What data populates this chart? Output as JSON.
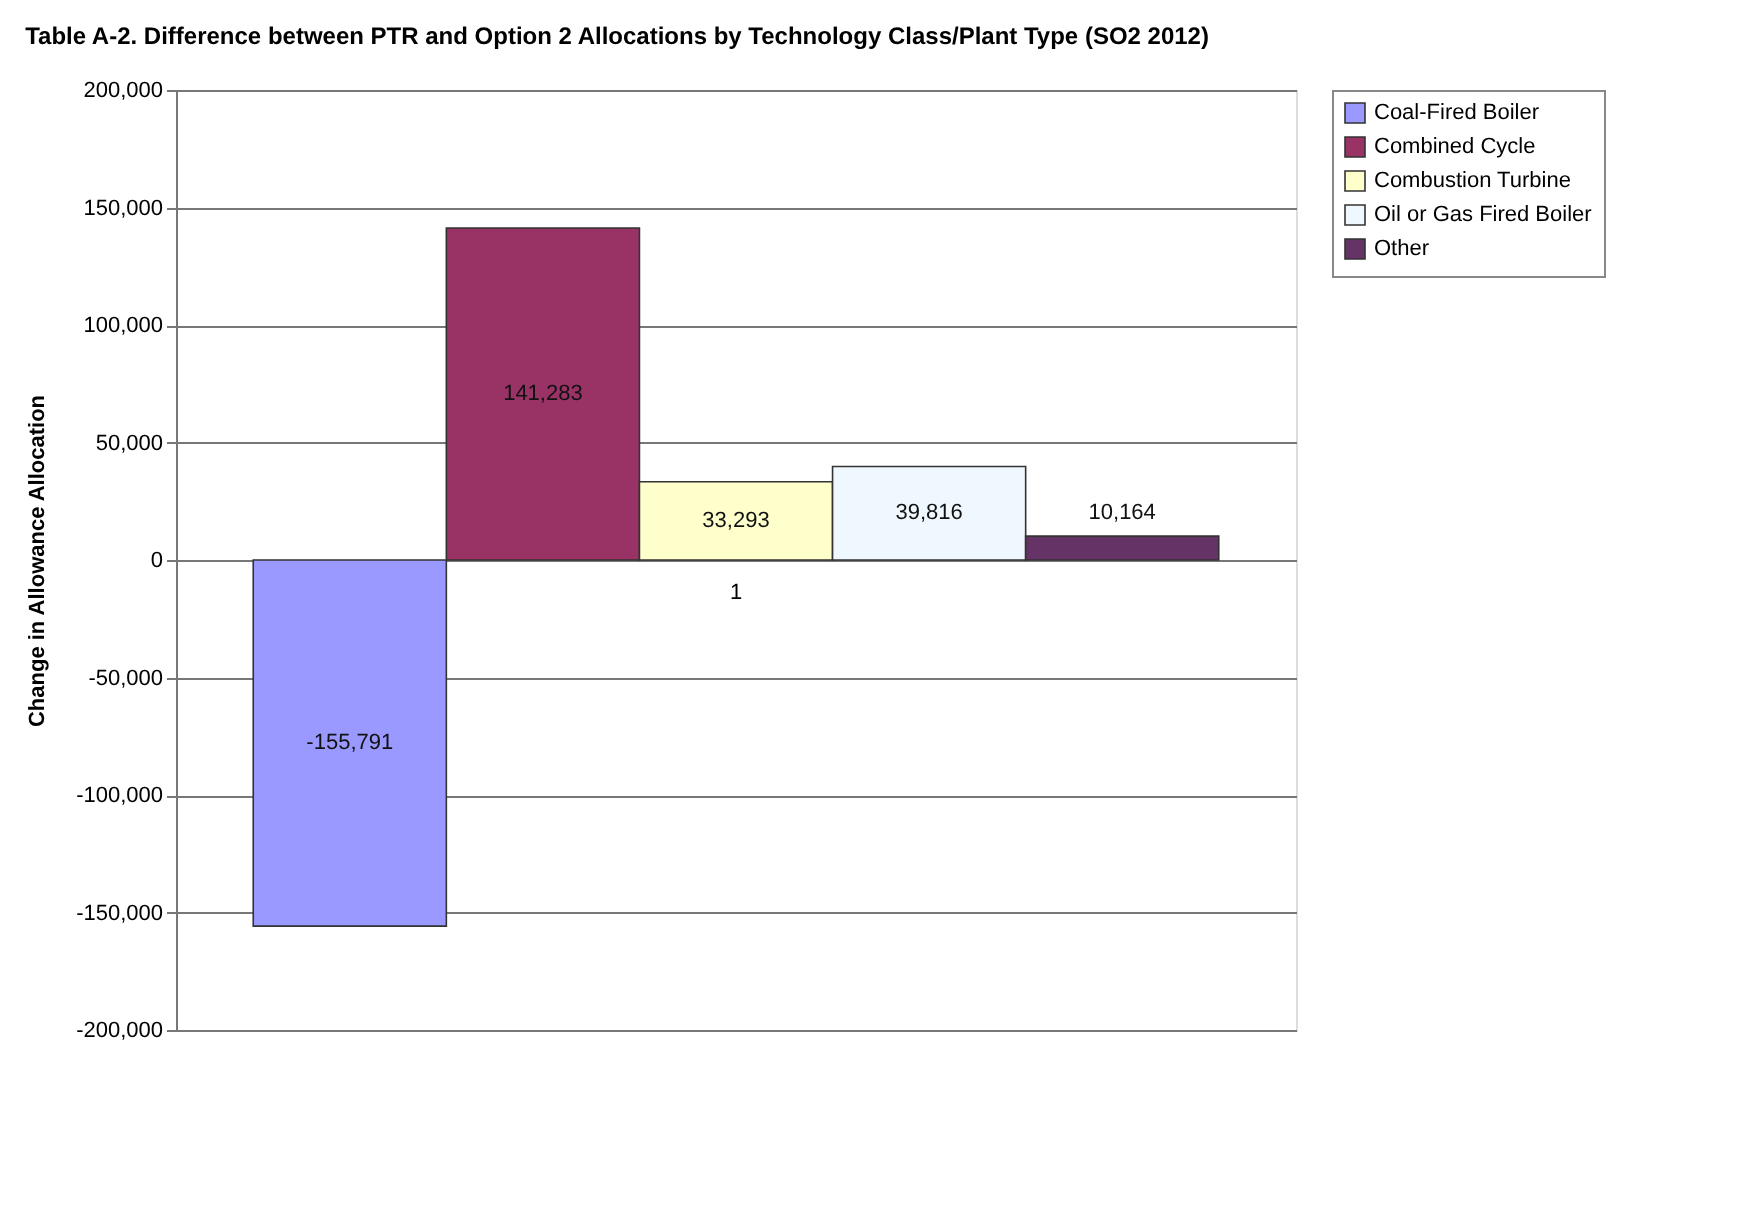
{
  "chart_data": {
    "type": "bar",
    "title": "Table A-2.  Difference between PTR and Option 2 Allocations by Technology Class/Plant Type (SO2 2012)",
    "ylabel": "Change in Allowance Allocation",
    "categories": [
      "1"
    ],
    "series": [
      {
        "name": "Coal-Fired Boiler",
        "color": "#9999ff",
        "values": [
          -155791
        ],
        "value_labels": [
          "-155,791"
        ]
      },
      {
        "name": "Combined Cycle",
        "color": "#993366",
        "values": [
          141283
        ],
        "value_labels": [
          "141,283"
        ]
      },
      {
        "name": "Combustion Turbine",
        "color": "#ffffcc",
        "values": [
          33293
        ],
        "value_labels": [
          "33,293"
        ]
      },
      {
        "name": "Oil or Gas Fired Boiler",
        "color": "#f0f8ff",
        "values": [
          39816
        ],
        "value_labels": [
          "39,816"
        ]
      },
      {
        "name": "Other",
        "color": "#663366",
        "values": [
          10164
        ],
        "value_labels": [
          "10,164"
        ]
      }
    ],
    "ylim": [
      -200000,
      200000
    ],
    "yticks": [
      {
        "value": -200000,
        "label": "-200,000"
      },
      {
        "value": -150000,
        "label": "-150,000"
      },
      {
        "value": -100000,
        "label": "-100,000"
      },
      {
        "value": -50000,
        "label": "-50,000"
      },
      {
        "value": 0,
        "label": "0"
      },
      {
        "value": 50000,
        "label": "50,000"
      },
      {
        "value": 100000,
        "label": "100,000"
      },
      {
        "value": 150000,
        "label": "150,000"
      },
      {
        "value": 200000,
        "label": "200,000"
      }
    ],
    "grid": "y",
    "legend": "right"
  }
}
